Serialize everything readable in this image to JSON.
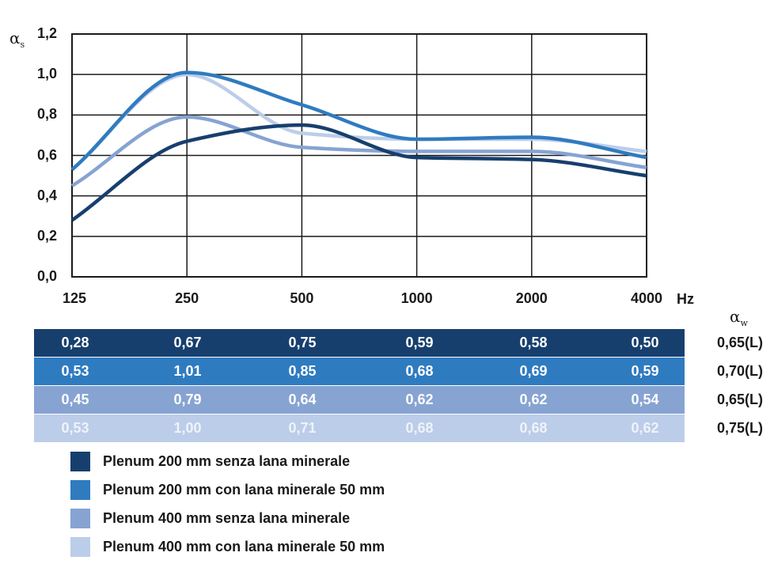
{
  "chart_data": {
    "type": "line",
    "ylabel": "αs",
    "xunit": "Hz",
    "categories": [
      "125",
      "250",
      "500",
      "1000",
      "2000",
      "4000"
    ],
    "ylim": [
      0,
      1.2
    ],
    "yticks": [
      "0,0",
      "0,2",
      "0,4",
      "0,6",
      "0,8",
      "1,0",
      "1,2"
    ],
    "grid": true,
    "series": [
      {
        "name": "Plenum 200 mm senza lana minerale",
        "color": "#173f6e",
        "values": [
          0.28,
          0.67,
          0.75,
          0.59,
          0.58,
          0.5
        ],
        "labels": [
          "0,28",
          "0,67",
          "0,75",
          "0,59",
          "0,58",
          "0,50"
        ],
        "aw": "0,65(L)"
      },
      {
        "name": "Plenum 200 mm con lana minerale 50 mm",
        "color": "#2f7bc0",
        "values": [
          0.53,
          1.01,
          0.85,
          0.68,
          0.69,
          0.59
        ],
        "labels": [
          "0,53",
          "1,01",
          "0,85",
          "0,68",
          "0,69",
          "0,59"
        ],
        "aw": "0,70(L)"
      },
      {
        "name": "Plenum 400 mm senza lana minerale",
        "color": "#86a3d2",
        "values": [
          0.45,
          0.79,
          0.64,
          0.62,
          0.62,
          0.54
        ],
        "labels": [
          "0,45",
          "0,79",
          "0,64",
          "0,62",
          "0,62",
          "0,54"
        ],
        "aw": "0,65(L)"
      },
      {
        "name": "Plenum 400 mm con lana minerale 50 mm",
        "color": "#bccde9",
        "values": [
          0.53,
          1.0,
          0.71,
          0.68,
          0.68,
          0.62
        ],
        "labels": [
          "0,53",
          "1,00",
          "0,71",
          "0,68",
          "0,68",
          "0,62"
        ],
        "aw": "0,75(L)"
      }
    ]
  },
  "aw_label": "αw"
}
